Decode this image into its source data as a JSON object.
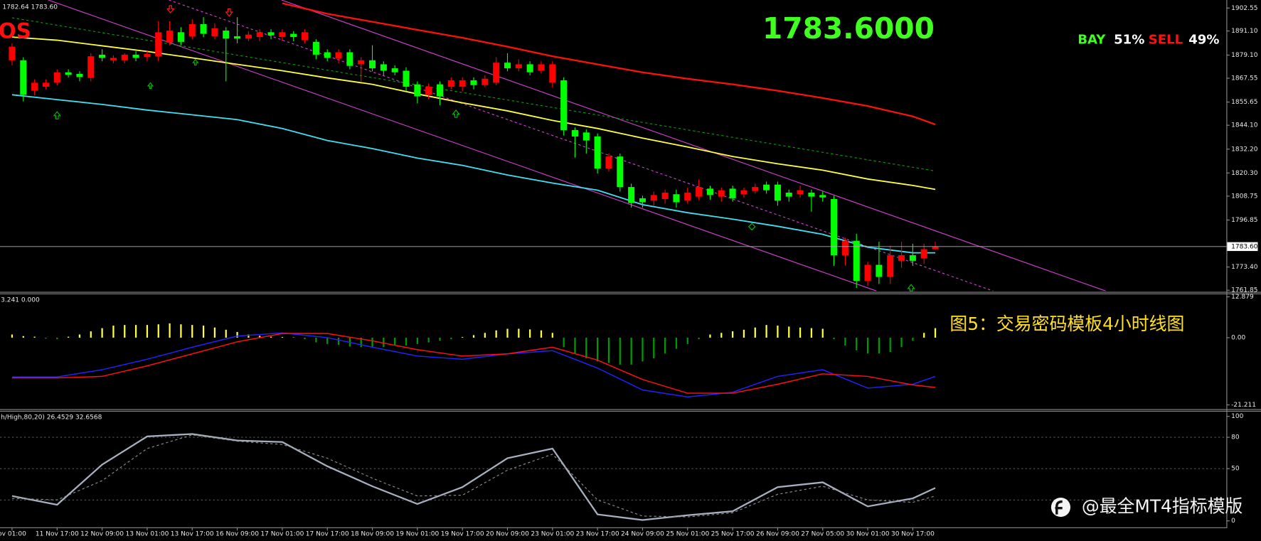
{
  "chart_data": [
    {
      "type": "candlestick",
      "header": "1782.64 1783.60",
      "label_left": "OS",
      "quote": "1783.6000",
      "buy_label": "BAY",
      "buy_share": "51%",
      "sell_label": "SELL",
      "sell_share": "49%",
      "up_color": "#ff0000",
      "down_color": "#00ff00",
      "categories": [
        "ov 01:00",
        null,
        null,
        null,
        "11 Nov 17:00",
        null,
        null,
        null,
        "12 Nov 09:00",
        null,
        null,
        null,
        "13 Nov 01:00",
        null,
        null,
        null,
        "13 Nov 17:00",
        null,
        null,
        null,
        "16 Nov 09:00",
        null,
        null,
        null,
        "17 Nov 01:00",
        null,
        null,
        null,
        "17 Nov 17:00",
        null,
        null,
        null,
        "18 Nov 09:00",
        null,
        null,
        null,
        "19 Nov 01:00",
        null,
        null,
        null,
        "19 Nov 17:00",
        null,
        null,
        null,
        "20 Nov 09:00",
        null,
        null,
        null,
        "23 Nov 01:00",
        null,
        null,
        null,
        "23 Nov 17:00",
        null,
        null,
        null,
        "24 Nov 09:00",
        null,
        null,
        null,
        "25 Nov 01:00",
        null,
        null,
        null,
        "25 Nov 17:00",
        null,
        null,
        null,
        "26 Nov 09:00",
        null,
        null,
        null,
        "27 Nov 05:00",
        null,
        null,
        null,
        "30 Nov 01:00",
        null,
        null,
        null,
        "30 Nov 17:00",
        null,
        null
      ],
      "open": [
        1876.5,
        1876.5,
        1861.3,
        1863.3,
        1865.3,
        1870.5,
        1869.7,
        1867.7,
        1879.3,
        1876.5,
        1876.5,
        1879.3,
        1878.1,
        1878.5,
        1885.3,
        1890.5,
        1888.5,
        1894.5,
        1888.5,
        1891.3,
        1888.5,
        1887.3,
        1888.1,
        1890.5,
        1888.1,
        1889.7,
        1886.5,
        1885.7,
        1880.5,
        1877.3,
        1880.5,
        1874.5,
        1876.5,
        1874.5,
        1872.5,
        1871.3,
        1864.5,
        1859.3,
        1864.5,
        1863.3,
        1863.3,
        1866.5,
        1864.1,
        1865.3,
        1875.3,
        1872.5,
        1874.5,
        1871.3,
        1865.3,
        1866.5,
        1841.7,
        1840.5,
        1838.5,
        1822.5,
        1828.5,
        1813.3,
        1807.7,
        1806.5,
        1807.3,
        1809.7,
        1806.5,
        1808.5,
        1812.5,
        1808.5,
        1812.5,
        1809.7,
        1811.3,
        1814.5,
        1814.5,
        1810.5,
        1809.7,
        1810.5,
        1809.3,
        1807.3,
        1779.3,
        1786.5,
        1766.5,
        1774.5,
        1768.5,
        1776.5,
        1779.3,
        1777.7,
        1782.3
      ],
      "high": [
        1885,
        1878,
        1867,
        1867,
        1872,
        1872,
        1871,
        1880,
        1882,
        1879,
        1880,
        1881,
        1881,
        1896,
        1896,
        1893,
        1897,
        1898,
        1895,
        1893,
        1898,
        1891,
        1892,
        1892,
        1892,
        1891,
        1892,
        1887,
        1882,
        1882,
        1882,
        1878,
        1884,
        1876,
        1874,
        1873,
        1866,
        1865,
        1866,
        1868,
        1868,
        1868,
        1869,
        1878,
        1880,
        1877,
        1876,
        1876,
        1876,
        1868,
        1843,
        1842,
        1840,
        1830,
        1830,
        1815,
        1809,
        1811,
        1812,
        1812,
        1813,
        1817,
        1814,
        1813,
        1814,
        1813,
        1815,
        1816,
        1816,
        1812,
        1814,
        1812,
        1811,
        1809,
        1788,
        1790,
        1776,
        1786,
        1784,
        1786,
        1785,
        1785,
        1786
      ],
      "low": [
        1874,
        1856,
        1859,
        1862,
        1864,
        1868,
        1866,
        1866,
        1876,
        1875,
        1875,
        1876,
        1876,
        1876,
        1884,
        1884,
        1887,
        1888,
        1887,
        1866,
        1885,
        1886,
        1886,
        1887,
        1886,
        1886,
        1885,
        1877,
        1876,
        1875,
        1872,
        1866,
        1871,
        1869,
        1869,
        1861,
        1855,
        1857,
        1854,
        1862,
        1861,
        1862,
        1863,
        1864,
        1871,
        1871,
        1869,
        1870,
        1863,
        1839,
        1828,
        1830,
        1820,
        1821,
        1811,
        1803,
        1803,
        1804,
        1805,
        1803,
        1805,
        1807,
        1807,
        1806,
        1806,
        1808,
        1810,
        1810,
        1804,
        1806,
        1808,
        1801,
        1806,
        1774,
        1774,
        1763,
        1764,
        1765,
        1765,
        1773,
        1774,
        1775,
        1782
      ],
      "close": [
        1883.3,
        1859.3,
        1865.3,
        1865.3,
        1870.5,
        1869.3,
        1868.1,
        1878.5,
        1877.7,
        1877.7,
        1879.3,
        1877.7,
        1879.7,
        1890.5,
        1891.3,
        1885.7,
        1894.5,
        1889.7,
        1892.5,
        1887.3,
        1887.3,
        1889.3,
        1890.5,
        1888.9,
        1890.5,
        1888.1,
        1890.5,
        1879.3,
        1877.7,
        1880.5,
        1873.7,
        1876.5,
        1872.5,
        1871.3,
        1870.5,
        1863.3,
        1858.5,
        1863.3,
        1858.5,
        1866.5,
        1866.5,
        1864.1,
        1867.3,
        1875.3,
        1872.5,
        1874.5,
        1870.5,
        1874.5,
        1874.5,
        1841.7,
        1838.5,
        1836.5,
        1822.5,
        1828.5,
        1813.3,
        1805.3,
        1805.7,
        1809.3,
        1810.5,
        1805.7,
        1810.5,
        1813.3,
        1809.3,
        1811.7,
        1807.7,
        1811.7,
        1813.3,
        1811.7,
        1806.5,
        1808.5,
        1811.7,
        1808.5,
        1808.1,
        1779.3,
        1786.5,
        1766.5,
        1774.5,
        1768.5,
        1779.3,
        1779.3,
        1776.5,
        1782.3,
        1783.6
      ],
      "overlays": [
        {
          "color": "#ff1010",
          "width": 2,
          "x": [
            24,
            28,
            32,
            36,
            40,
            44,
            48,
            52,
            56,
            60,
            64,
            68,
            72,
            76,
            80,
            82
          ],
          "values": [
            1904.9,
            1899.7,
            1895.7,
            1891.7,
            1887.7,
            1883.3,
            1878.5,
            1874.5,
            1870.5,
            1867.3,
            1864.5,
            1861.3,
            1857.7,
            1853.7,
            1848.5,
            1844.5
          ]
        },
        {
          "color": "#ffff40",
          "width": 1.6,
          "x": [
            0,
            4,
            8,
            12,
            16,
            20,
            24,
            28,
            32,
            36,
            40,
            44,
            48,
            52,
            56,
            60,
            64,
            68,
            72,
            76,
            80,
            82
          ],
          "values": [
            1888.1,
            1886.5,
            1883.7,
            1880.9,
            1877.7,
            1874.5,
            1871.3,
            1867.7,
            1864.5,
            1859.7,
            1855.3,
            1851.3,
            1846.5,
            1842.5,
            1837.7,
            1833.3,
            1828.5,
            1824.9,
            1821.7,
            1817.3,
            1814.1,
            1812.1
          ]
        },
        {
          "color": "#40e0f0",
          "width": 1.6,
          "x": [
            0,
            4,
            8,
            12,
            16,
            20,
            24,
            28,
            32,
            36,
            40,
            44,
            48,
            52,
            56,
            60,
            64,
            68,
            72,
            76,
            80,
            82
          ],
          "values": [
            1859.3,
            1856.9,
            1854.5,
            1851.7,
            1849.3,
            1846.9,
            1842.5,
            1836.5,
            1832.5,
            1827.7,
            1824.1,
            1819.3,
            1815.3,
            1811.7,
            1804.5,
            1800.5,
            1797.3,
            1793.7,
            1789.7,
            1783.3,
            1780.5,
            1780.5
          ]
        },
        {
          "color": "#00a000",
          "width": 1,
          "dash": true,
          "x": [
            0,
            82
          ],
          "values": [
            1897.7,
            1821.3
          ]
        }
      ],
      "price_marker": {
        "value": 1783.6,
        "label": "1783.60"
      },
      "ylim": [
        1761.45,
        1906.56
      ],
      "yticks": [
        1902.55,
        {
          "value": 1891.1,
          "label": "1891.10"
        },
        {
          "value": 1879.1,
          "label": "1879.10"
        },
        1867.55,
        1855.65,
        {
          "value": 1844.1,
          "label": "1844.10"
        },
        {
          "value": 1832.2,
          "label": "1832.20"
        },
        {
          "value": 1820.3,
          "label": "1820.30"
        },
        1808.75,
        1796.85,
        {
          "value": 1773.4,
          "label": "1773.40"
        },
        1761.85
      ]
    },
    {
      "type": "macd",
      "header": "3.241 0.000",
      "histogram": [
        1.0,
        0.5,
        0.3,
        -0.3,
        -0.5,
        0.3,
        1.0,
        2.0,
        3.0,
        3.8,
        4.0,
        4.0,
        4.0,
        4.2,
        4.5,
        4.2,
        4.0,
        3.8,
        3.2,
        2.5,
        1.8,
        1.0,
        0.6,
        0.3,
        0.2,
        0.1,
        -0.5,
        -1.5,
        -2.0,
        -2.3,
        -2.8,
        -3.0,
        -3.0,
        -3.0,
        -2.5,
        -2.5,
        -2.0,
        -1.5,
        -1.0,
        -0.5,
        0.2,
        0.8,
        1.5,
        2.3,
        2.8,
        2.8,
        2.6,
        2.3,
        1.5,
        -3.0,
        -5.0,
        -6.5,
        -7.5,
        -8.0,
        -8.5,
        -8.5,
        -7.5,
        -6.5,
        -5.0,
        -3.5,
        -2.0,
        -0.5,
        1.0,
        1.5,
        2.0,
        2.5,
        3.2,
        4.0,
        3.8,
        3.5,
        3.2,
        3.0,
        2.8,
        -0.5,
        -2.5,
        -4.0,
        -5.0,
        -5.0,
        -4.5,
        -3.0,
        -1.0,
        1.5,
        3.0
      ],
      "histogram_colors": {
        "positive": "#ffff40",
        "negative": "#009a00"
      },
      "series": [
        {
          "color": "#2222ff",
          "x": [
            0,
            4,
            8,
            12,
            16,
            20,
            24,
            28,
            32,
            36,
            40,
            44,
            48,
            52,
            56,
            60,
            64,
            68,
            72,
            76,
            80,
            82
          ],
          "values": [
            -12.4,
            -12.4,
            -10.1,
            -6.8,
            -3.0,
            0.5,
            1.5,
            0,
            -3.0,
            -5.8,
            -6.8,
            -5.1,
            -4.1,
            -9.6,
            -16.5,
            -18.7,
            -17.2,
            -12.2,
            -10.1,
            -15.9,
            -14.7,
            -12.2
          ]
        },
        {
          "color": "#ff1010",
          "x": [
            0,
            4,
            8,
            12,
            16,
            20,
            24,
            28,
            32,
            36,
            40,
            44,
            48,
            52,
            56,
            60,
            64,
            68,
            72,
            76,
            80,
            82
          ],
          "values": [
            -12.7,
            -12.7,
            -12.2,
            -8.9,
            -5.1,
            -1.3,
            1.3,
            1.3,
            -1.0,
            -3.8,
            -5.8,
            -5.1,
            -3.0,
            -7.1,
            -13.2,
            -17.5,
            -17.5,
            -14.7,
            -11.4,
            -12.2,
            -14.9,
            -15.7
          ]
        }
      ],
      "ylim": [
        -22.3,
        13.7
      ],
      "yticks": [
        12.879,
        {
          "value": 0,
          "label": "0.00"
        },
        -21.211
      ]
    },
    {
      "type": "stochastic",
      "header": "h/High,80,20) 26.4529 32.6568",
      "series": [
        {
          "color": "#a8b0c0",
          "width": 2,
          "x": [
            0,
            4,
            8,
            12,
            16,
            20,
            24,
            28,
            32,
            36,
            40,
            44,
            48,
            52,
            56,
            60,
            64,
            68,
            72,
            76,
            80,
            82
          ],
          "values": [
            23.8,
            15.4,
            53.8,
            80.8,
            83.1,
            76.9,
            75.4,
            52.3,
            33.1,
            16.2,
            32.3,
            60.0,
            69.2,
            6.2,
            0.8,
            5.4,
            9.2,
            32.3,
            36.9,
            13.8,
            21.5,
            31.5
          ]
        },
        {
          "color": "#909090",
          "width": 1,
          "dash": true,
          "x": [
            0,
            4,
            8,
            12,
            16,
            20,
            24,
            28,
            32,
            36,
            40,
            44,
            48,
            52,
            56,
            60,
            64,
            68,
            72,
            76,
            80,
            82
          ],
          "values": [
            21.5,
            20.0,
            38.5,
            69.2,
            82.3,
            76.2,
            73.1,
            60.0,
            40.8,
            23.8,
            24.6,
            48.5,
            63.8,
            20.0,
            4.6,
            3.8,
            7.7,
            25.4,
            33.1,
            20.0,
            17.7,
            23.8
          ]
        }
      ],
      "levels": [
        80,
        50,
        20
      ],
      "ylim": [
        -6.2,
        104.6
      ],
      "yticks": [
        100,
        80,
        50,
        0
      ]
    }
  ],
  "caption": "图5：交易密码模板4小时线图",
  "watermark": "@最全MT4指标模版"
}
